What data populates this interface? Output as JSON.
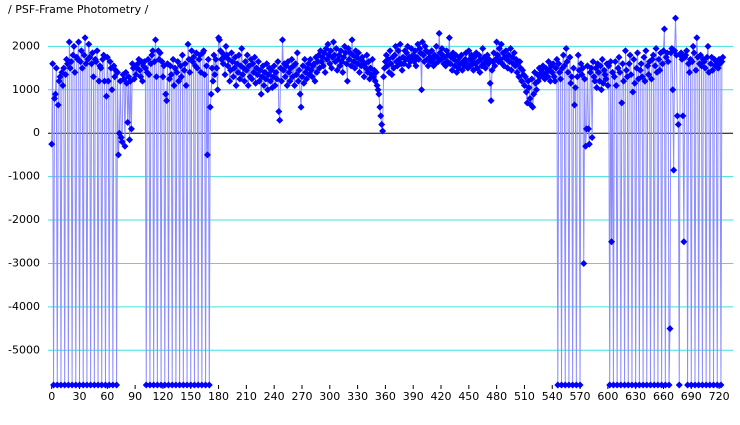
{
  "chart_data": {
    "type": "line",
    "title": "/ PSF-Frame Photometry /",
    "color": "#0000ff",
    "line_color": "#8c8cff",
    "grid": true,
    "grid_color": "#40e0e0",
    "zero_line_color": "#000000",
    "xlim": [
      -4,
      735
    ],
    "ylim": [
      -5800,
      2700
    ],
    "xticks": [
      0,
      30,
      60,
      90,
      120,
      150,
      180,
      210,
      240,
      270,
      300,
      330,
      360,
      390,
      420,
      450,
      480,
      510,
      540,
      570,
      600,
      630,
      660,
      690,
      720
    ],
    "yticks": [
      -5000,
      -4000,
      -3000,
      -2000,
      -1000,
      0,
      1000,
      2000
    ],
    "x": [
      0,
      1,
      2,
      3,
      4,
      5,
      6,
      7,
      8,
      9,
      10,
      11,
      12,
      13,
      14,
      15,
      16,
      17,
      18,
      19,
      20,
      21,
      22,
      23,
      24,
      25,
      26,
      27,
      28,
      29,
      30,
      31,
      32,
      33,
      34,
      35,
      36,
      37,
      38,
      39,
      40,
      41,
      42,
      43,
      44,
      45,
      46,
      47,
      48,
      49,
      50,
      51,
      52,
      53,
      54,
      55,
      56,
      57,
      58,
      59,
      60,
      61,
      62,
      63,
      64,
      65,
      66,
      67,
      68,
      69,
      70,
      71,
      72,
      73,
      74,
      75,
      76,
      77,
      78,
      79,
      80,
      81,
      82,
      83,
      84,
      85,
      86,
      87,
      88,
      89,
      90,
      91,
      92,
      93,
      94,
      95,
      96,
      97,
      98,
      99,
      100,
      101,
      102,
      103,
      104,
      105,
      106,
      107,
      108,
      109,
      110,
      111,
      112,
      113,
      114,
      115,
      116,
      117,
      118,
      119,
      120,
      121,
      122,
      123,
      124,
      125,
      126,
      127,
      128,
      129,
      130,
      131,
      132,
      133,
      134,
      135,
      136,
      137,
      138,
      139,
      140,
      141,
      142,
      143,
      144,
      145,
      146,
      147,
      148,
      149,
      150,
      151,
      152,
      153,
      154,
      155,
      156,
      157,
      158,
      159,
      160,
      161,
      162,
      163,
      164,
      165,
      166,
      167,
      168,
      169,
      170,
      171,
      172,
      173,
      174,
      175,
      176,
      177,
      178,
      179,
      180,
      181,
      182,
      183,
      184,
      185,
      186,
      187,
      188,
      189,
      190,
      191,
      192,
      193,
      194,
      195,
      196,
      197,
      198,
      199,
      200,
      201,
      202,
      203,
      204,
      205,
      206,
      207,
      208,
      209,
      210,
      211,
      212,
      213,
      214,
      215,
      216,
      217,
      218,
      219,
      220,
      221,
      222,
      223,
      224,
      225,
      226,
      227,
      228,
      229,
      230,
      231,
      232,
      233,
      234,
      235,
      236,
      237,
      238,
      239,
      240,
      241,
      242,
      243,
      244,
      245,
      246,
      247,
      248,
      249,
      250,
      251,
      252,
      253,
      254,
      255,
      256,
      257,
      258,
      259,
      260,
      261,
      262,
      263,
      264,
      265,
      266,
      267,
      268,
      269,
      270,
      271,
      272,
      273,
      274,
      275,
      276,
      277,
      278,
      279,
      280,
      281,
      282,
      283,
      284,
      285,
      286,
      287,
      288,
      289,
      290,
      291,
      292,
      293,
      294,
      295,
      296,
      297,
      298,
      299,
      300,
      301,
      302,
      303,
      304,
      305,
      306,
      307,
      308,
      309,
      310,
      311,
      312,
      313,
      314,
      315,
      316,
      317,
      318,
      319,
      320,
      321,
      322,
      323,
      324,
      325,
      326,
      327,
      328,
      329,
      330,
      331,
      332,
      333,
      334,
      335,
      336,
      337,
      338,
      339,
      340,
      341,
      342,
      343,
      344,
      345,
      346,
      347,
      348,
      349,
      350,
      351,
      352,
      353,
      354,
      355,
      356,
      357,
      358,
      359,
      360,
      361,
      362,
      363,
      364,
      365,
      366,
      367,
      368,
      369,
      370,
      371,
      372,
      373,
      374,
      375,
      376,
      377,
      378,
      379,
      380,
      381,
      382,
      383,
      384,
      385,
      386,
      387,
      388,
      389,
      390,
      391,
      392,
      393,
      394,
      395,
      396,
      397,
      398,
      399,
      400,
      401,
      402,
      403,
      404,
      405,
      406,
      407,
      408,
      409,
      410,
      411,
      412,
      413,
      414,
      415,
      416,
      417,
      418,
      419,
      420,
      421,
      422,
      423,
      424,
      425,
      426,
      427,
      428,
      429,
      430,
      431,
      432,
      433,
      434,
      435,
      436,
      437,
      438,
      439,
      440,
      441,
      442,
      443,
      444,
      445,
      446,
      447,
      448,
      449,
      450,
      451,
      452,
      453,
      454,
      455,
      456,
      457,
      458,
      459,
      460,
      461,
      462,
      463,
      464,
      465,
      466,
      467,
      468,
      469,
      470,
      471,
      472,
      473,
      474,
      475,
      476,
      477,
      478,
      479,
      480,
      481,
      482,
      483,
      484,
      485,
      486,
      487,
      488,
      489,
      490,
      491,
      492,
      493,
      494,
      495,
      496,
      497,
      498,
      499,
      500,
      501,
      502,
      503,
      504,
      505,
      506,
      507,
      508,
      509,
      510,
      511,
      512,
      513,
      514,
      515,
      516,
      517,
      518,
      519,
      520,
      521,
      522,
      523,
      524,
      525,
      526,
      527,
      528,
      529,
      530,
      531,
      532,
      533,
      534,
      535,
      536,
      537,
      538,
      539,
      540,
      541,
      542,
      543,
      544,
      545,
      546,
      547,
      548,
      549,
      550,
      551,
      552,
      553,
      554,
      555,
      556,
      557,
      558,
      559,
      560,
      561,
      562,
      563,
      564,
      565,
      566,
      567,
      568,
      569,
      570,
      571,
      572,
      573,
      574,
      575,
      576,
      577,
      578,
      579,
      580,
      581,
      582,
      583,
      584,
      585,
      586,
      587,
      588,
      589,
      590,
      591,
      592,
      593,
      594,
      595,
      596,
      597,
      598,
      599,
      600,
      601,
      602,
      603,
      604,
      605,
      606,
      607,
      608,
      609,
      610,
      611,
      612,
      613,
      614,
      615,
      616,
      617,
      618,
      619,
      620,
      621,
      622,
      623,
      624,
      625,
      626,
      627,
      628,
      629,
      630,
      631,
      632,
      633,
      634,
      635,
      636,
      637,
      638,
      639,
      640,
      641,
      642,
      643,
      644,
      645,
      646,
      647,
      648,
      649,
      650,
      651,
      652,
      653,
      654,
      655,
      656,
      657,
      658,
      659,
      660,
      661,
      662,
      663,
      664,
      665,
      666,
      667,
      668,
      669,
      670,
      671,
      672,
      673,
      674,
      675,
      676,
      677,
      678,
      679,
      680,
      681,
      682,
      683,
      684,
      685,
      686,
      687,
      688,
      689,
      690,
      691,
      692,
      693,
      694,
      695,
      696,
      697,
      698,
      699,
      700,
      701,
      702,
      703,
      704,
      705,
      706,
      707,
      708,
      709,
      710,
      711,
      712,
      713,
      714,
      715,
      716,
      717,
      718,
      719,
      720,
      721,
      722,
      723,
      724
    ],
    "values": [
      -250,
      1600,
      -5800,
      800,
      900,
      1500,
      -5800,
      650,
      1200,
      1300,
      -5800,
      1400,
      1100,
      1500,
      -5800,
      1350,
      1700,
      1600,
      -5800,
      2100,
      1500,
      1650,
      -5800,
      1800,
      2000,
      1400,
      -5800,
      1750,
      1700,
      2100,
      -5800,
      1650,
      1900,
      1500,
      -5800,
      1800,
      2200,
      1600,
      -5800,
      1700,
      2050,
      1750,
      -5800,
      1600,
      1850,
      1300,
      -5800,
      1700,
      1650,
      1900,
      -5800,
      1200,
      1550,
      1500,
      -5800,
      1700,
      1800,
      1200,
      -5800,
      850,
      1750,
      1200,
      -5800,
      1650,
      1500,
      1000,
      -5800,
      1550,
      1300,
      1450,
      -5800,
      1400,
      -500,
      0,
      1200,
      -100,
      -200,
      1350,
      1250,
      -300,
      1400,
      1150,
      250,
      1300,
      -150,
      1200,
      100,
      1600,
      1500,
      1250,
      1550,
      1350,
      1500,
      1600,
      1700,
      1450,
      1300,
      1650,
      1200,
      1550,
      1650,
      1500,
      -5800,
      1400,
      1700,
      1350,
      -5800,
      1600,
      1800,
      1900,
      -5800,
      1650,
      2150,
      1300,
      -5800,
      1900,
      1700,
      1850,
      -5800,
      1650,
      1300,
      1550,
      -5800,
      900,
      750,
      1600,
      -5800,
      1250,
      1550,
      1350,
      -5800,
      1700,
      1100,
      1500,
      -5800,
      1400,
      1650,
      1200,
      -5800,
      1550,
      1300,
      1800,
      -5800,
      1450,
      1600,
      1100,
      -5800,
      2050,
      1700,
      1400,
      -5800,
      1900,
      1650,
      1750,
      -5800,
      1550,
      1850,
      1500,
      -5800,
      1700,
      1800,
      1400,
      -5800,
      1850,
      1900,
      1350,
      -5800,
      1550,
      -500,
      1700,
      -5800,
      600,
      900,
      1500,
      1200,
      1800,
      1350,
      1700,
      1500,
      1000,
      2200,
      2150,
      1900,
      1700,
      1850,
      1600,
      1750,
      1350,
      2000,
      1800,
      1550,
      1700,
      1200,
      1450,
      1850,
      1650,
      1300,
      1500,
      1750,
      1100,
      1600,
      1400,
      1800,
      1250,
      1550,
      1950,
      1350,
      1500,
      1200,
      1650,
      1450,
      1800,
      1100,
      1550,
      1300,
      1700,
      1250,
      1600,
      1400,
      1750,
      1150,
      1500,
      1350,
      1650,
      1200,
      1450,
      900,
      1300,
      1550,
      1100,
      1400,
      1250,
      1600,
      1000,
      1350,
      1500,
      1200,
      1450,
      1050,
      1300,
      1550,
      1100,
      1400,
      1250,
      1650,
      500,
      300,
      1500,
      1200,
      2150,
      1450,
      1600,
      1300,
      1550,
      1100,
      1650,
      1400,
      1200,
      1500,
      1700,
      1300,
      1550,
      1100,
      1600,
      1350,
      1850,
      1200,
      1450,
      900,
      600,
      1300,
      1550,
      1150,
      1700,
      1400,
      1250,
      1500,
      1600,
      1350,
      1700,
      1450,
      1300,
      1550,
      1600,
      1200,
      1750,
      1400,
      1650,
      1800,
      1500,
      1900,
      1650,
      1750,
      1550,
      1850,
      1400,
      1950,
      1700,
      2050,
      1800,
      1600,
      1900,
      1500,
      1750,
      2100,
      1800,
      1650,
      1950,
      1450,
      1700,
      1800,
      1550,
      1900,
      1650,
      1400,
      1750,
      2000,
      1850,
      1600,
      1200,
      1950,
      1700,
      1850,
      1550,
      2150,
      1800,
      1650,
      1500,
      1900,
      1750,
      1600,
      1850,
      1400,
      1700,
      1550,
      1750,
      1650,
      1300,
      1600,
      1500,
      1800,
      1400,
      1650,
      1250,
      1500,
      1350,
      1700,
      1300,
      1450,
      1200,
      1400,
      1100,
      1000,
      900,
      600,
      400,
      200,
      50,
      1300,
      1500,
      1650,
      1800,
      1550,
      1700,
      1400,
      1900,
      1600,
      1350,
      1750,
      1500,
      1800,
      2000,
      1650,
      1550,
      1900,
      1700,
      2050,
      1600,
      1450,
      1750,
      1600,
      1900,
      1700,
      1850,
      2000,
      1550,
      1750,
      1650,
      1950,
      1700,
      1800,
      1650,
      1900,
      1550,
      1750,
      2050,
      1700,
      1950,
      1850,
      1000,
      2100,
      1800,
      1650,
      2000,
      1900,
      1700,
      1550,
      1850,
      1750,
      1650,
      1900,
      1700,
      1550,
      1800,
      1600,
      2000,
      1750,
      1650,
      2300,
      1850,
      1700,
      1950,
      1800,
      1600,
      1750,
      1550,
      1900,
      1650,
      1800,
      2200,
      1600,
      1750,
      1450,
      1850,
      1700,
      1550,
      1800,
      1400,
      1650,
      1500,
      1750,
      1600,
      1800,
      1450,
      1650,
      1550,
      1700,
      1850,
      1600,
      1500,
      1900,
      1700,
      1550,
      1800,
      1650,
      1450,
      1750,
      1600,
      1850,
      1500,
      1650,
      1800,
      1400,
      1700,
      1550,
      1950,
      1600,
      1750,
      1500,
      1650,
      1800,
      1600,
      1700,
      1150,
      750,
      1450,
      1650,
      1850,
      1550,
      1700,
      2100,
      1800,
      1650,
      1950,
      1700,
      2050,
      1600,
      1850,
      1550,
      1750,
      1900,
      1700,
      1500,
      1800,
      1650,
      1950,
      1450,
      1750,
      1600,
      1850,
      1550,
      1700,
      1400,
      1600,
      1300,
      1650,
      1500,
      1200,
      1450,
      1350,
      1100,
      1300,
      950,
      700,
      1200,
      1050,
      800,
      650,
      1250,
      600,
      900,
      1400,
      1150,
      1000,
      1350,
      1200,
      1500,
      1300,
      1450,
      1400,
      1550,
      1350,
      1250,
      1500,
      1400,
      1300,
      1650,
      1450,
      1200,
      1550,
      1400,
      1600,
      1300,
      1200,
      1500,
      1700,
      -5800,
      1600,
      1400,
      1250,
      -5800,
      1500,
      1800,
      1550,
      -5800,
      1950,
      1650,
      1400,
      -5800,
      1750,
      1150,
      1300,
      -5800,
      1500,
      650,
      1050,
      -5800,
      1300,
      1800,
      1450,
      -5800,
      1600,
      1350,
      1500,
      -3000,
      1250,
      -300,
      100,
      1550,
      100,
      -250,
      1400,
      1500,
      -100,
      1650,
      1300,
      1200,
      1500,
      1050,
      1600,
      1400,
      1200,
      1550,
      1000,
      1700,
      1150,
      1450,
      1350,
      1250,
      1600,
      1100,
      1550,
      -5800,
      1650,
      -2500,
      1400,
      -5800,
      1300,
      1650,
      1100,
      -5800,
      1500,
      1750,
      1400,
      -5800,
      700,
      1600,
      1200,
      -5800,
      1900,
      1450,
      1300,
      -5800,
      1600,
      1800,
      1350,
      -5800,
      950,
      1700,
      1150,
      -5800,
      1500,
      1850,
      1250,
      -5800,
      1450,
      1600,
      1300,
      -5800,
      1750,
      1200,
      1900,
      -5800,
      1550,
      1350,
      1650,
      -5800,
      1250,
      1700,
      1800,
      -5800,
      1550,
      1950,
      1400,
      -5800,
      1700,
      1450,
      1850,
      -5800,
      1600,
      1900,
      2400,
      -5800,
      1750,
      1850,
      1650,
      -5800,
      -4500,
      1850,
      1950,
      1000,
      -850,
      1900,
      2650,
      1800,
      400,
      200,
      -5800,
      1800,
      1850,
      1700,
      400,
      -2500,
      1750,
      1800,
      1900,
      -5800,
      1600,
      1400,
      1700,
      -5800,
      1650,
      2000,
      1850,
      -5800,
      1450,
      2200,
      1750,
      -5800,
      1600,
      1800,
      1550,
      -5800,
      1700,
      1650,
      1500,
      -5800,
      1750,
      2000,
      1400,
      -5800,
      1600,
      1750,
      1450,
      -5800,
      1700,
      1550,
      1650,
      -5800,
      1500,
      1700,
      1600,
      -5800,
      1650,
      1750
    ]
  }
}
